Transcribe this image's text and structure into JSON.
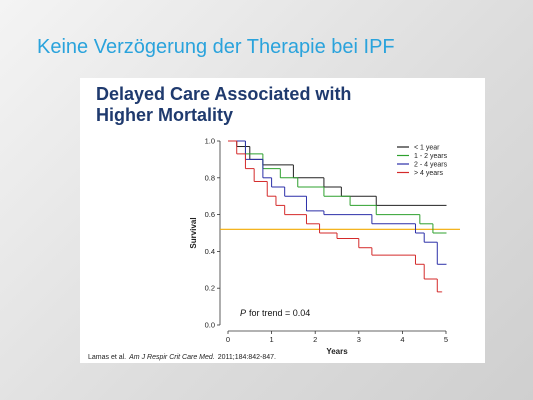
{
  "slide_title": "Keine Verzögerung der Therapie bei IPF",
  "chart_data": {
    "type": "line",
    "step": "post",
    "title": [
      "Delayed Care Associated with",
      "Higher Mortality"
    ],
    "xlabel": "Years",
    "ylabel": "Survival",
    "xlim": [
      0,
      5
    ],
    "ylim": [
      0,
      1
    ],
    "xticks": [
      0,
      1,
      2,
      3,
      4,
      5
    ],
    "yticks": [
      {
        "value": 0,
        "label": "0.0"
      },
      {
        "value": 0.2,
        "label": "0.2"
      },
      {
        "value": 0.4,
        "label": "0.4"
      },
      {
        "value": 0.6,
        "label": "0.6"
      },
      {
        "value": 0.8,
        "label": "0.8"
      },
      {
        "value": 1,
        "label": "1.0"
      }
    ],
    "series": [
      {
        "name": "< 1 year",
        "color": "#222222",
        "x": [
          0,
          0.2,
          0.5,
          0.8,
          1.5,
          2.2,
          2.6,
          3.4,
          5
        ],
        "values": [
          1,
          0.97,
          0.9,
          0.87,
          0.8,
          0.75,
          0.7,
          0.65,
          0.65
        ]
      },
      {
        "name": "1 - 2 years",
        "color": "#2ea02e",
        "x": [
          0,
          0.4,
          0.8,
          1.2,
          1.6,
          2.2,
          2.8,
          3.4,
          4.4,
          4.7,
          5
        ],
        "values": [
          1,
          0.93,
          0.85,
          0.8,
          0.75,
          0.7,
          0.65,
          0.6,
          0.55,
          0.5,
          0.5
        ]
      },
      {
        "name": "2 - 4 years",
        "color": "#2b2fa8",
        "x": [
          0,
          0.4,
          0.8,
          1,
          1.3,
          1.8,
          2.2,
          3.3,
          4.3,
          4.5,
          4.8,
          5
        ],
        "values": [
          1,
          0.9,
          0.8,
          0.75,
          0.7,
          0.62,
          0.6,
          0.55,
          0.5,
          0.45,
          0.33,
          0.33
        ]
      },
      {
        "name": "> 4 years",
        "color": "#d42a2a",
        "x": [
          0,
          0.2,
          0.4,
          0.6,
          0.9,
          1.1,
          1.3,
          1.8,
          2.1,
          2.5,
          3,
          3.3,
          4.3,
          4.5,
          4.8,
          4.9
        ],
        "values": [
          1,
          0.93,
          0.85,
          0.78,
          0.7,
          0.65,
          0.6,
          0.55,
          0.5,
          0.47,
          0.42,
          0.38,
          0.33,
          0.25,
          0.18,
          0.18
        ]
      }
    ],
    "reference_line": {
      "value": 0.52,
      "color": "#f2a900"
    },
    "annotation": {
      "italic": "P",
      "text": "for trend = 0.04"
    },
    "citation": {
      "authors": "Lamas et al.",
      "journal": "Am J Respir Crit Care Med.",
      "ref": "2011;184:842-847."
    },
    "legend": "upper right"
  }
}
